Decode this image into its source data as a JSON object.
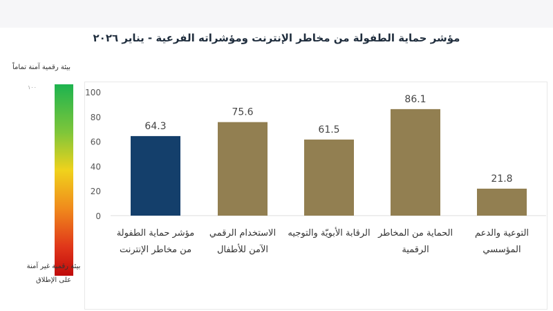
{
  "title": "مؤشر حماية الطفولة من مخاطر الإنترنت ومؤشراته الفرعية - يناير ٢٠٢٦",
  "legend": {
    "top_label": "بيئة رقمية آمنة تماماً",
    "max_value": "١٠٠",
    "bottom_label": "بيئة رقمية غير آمنة على الإطلاق",
    "gradient": [
      "#1db34f",
      "#f0d21c",
      "#c00b0b"
    ]
  },
  "chart_data": {
    "type": "bar",
    "title": "مؤشر حماية الطفولة من مخاطر الإنترنت ومؤشراته الفرعية - يناير ٢٠٢٦",
    "categories": [
      "مؤشر حماية الطفولة من مخاطر الإنترنت",
      "الاستخدام الرقمي الآمن للأطفال",
      "الرقابة الأبويّة والتوجيه",
      "الحماية من المخاطر الرقمية",
      "التوعية والدعم المؤسسي"
    ],
    "values": [
      64.3,
      75.6,
      61.5,
      86.1,
      21.8
    ],
    "value_labels": [
      "64.3",
      "75.6",
      "61.5",
      "86.1",
      "21.8"
    ],
    "colors": [
      "#143f6b",
      "#927f51",
      "#927f51",
      "#927f51",
      "#927f51"
    ],
    "yticks": [
      "0",
      "20",
      "40",
      "60",
      "80",
      "100"
    ],
    "ylim": [
      0,
      100
    ],
    "grid": false,
    "xlabel": "",
    "ylabel": ""
  }
}
